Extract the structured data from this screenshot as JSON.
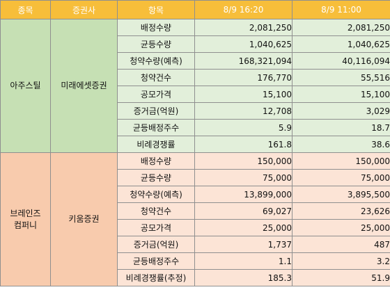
{
  "header": {
    "stock": "종목",
    "broker": "증권사",
    "item": "항목",
    "time1": "8/9 16:20",
    "time2": "8/9 11:00"
  },
  "colors": {
    "header_bg": "#f7be3a",
    "group1_left": "#c6e0b4",
    "group1_right": "#e2efda",
    "group2_left": "#f8cbad",
    "group2_right": "#fce4d6"
  },
  "groups": [
    {
      "stock": "아주스틸",
      "broker": "미래에셋증권",
      "rows": [
        {
          "item": "배정수량",
          "v1": "2,081,250",
          "v2": "2,081,250"
        },
        {
          "item": "균등수량",
          "v1": "1,040,625",
          "v2": "1,040,625"
        },
        {
          "item": "청약수량(예측)",
          "v1": "168,321,094",
          "v2": "40,116,094"
        },
        {
          "item": "청약건수",
          "v1": "176,770",
          "v2": "55,516"
        },
        {
          "item": "공모가격",
          "v1": "15,100",
          "v2": "15,100"
        },
        {
          "item": "증거금(억원)",
          "v1": "12,708",
          "v2": "3,029"
        },
        {
          "item": "균등배정주수",
          "v1": "5.9",
          "v2": "18.7"
        },
        {
          "item": "비례경쟁률",
          "v1": "161.8",
          "v2": "38.6"
        }
      ]
    },
    {
      "stock_line1": "브레인즈",
      "stock_line2": "컴퍼니",
      "broker": "키움증권",
      "rows": [
        {
          "item": "배정수량",
          "v1": "150,000",
          "v2": "150,000"
        },
        {
          "item": "균등수량",
          "v1": "75,000",
          "v2": "75,000"
        },
        {
          "item": "청약수량(예측)",
          "v1": "13,899,000",
          "v2": "3,895,500"
        },
        {
          "item": "청약건수",
          "v1": "69,027",
          "v2": "23,626"
        },
        {
          "item": "공모가격",
          "v1": "25,000",
          "v2": "25,000"
        },
        {
          "item": "증거금(억원)",
          "v1": "1,737",
          "v2": "487"
        },
        {
          "item": "균등배정주수",
          "v1": "1.1",
          "v2": "3.2"
        },
        {
          "item": "비례경쟁률(추정)",
          "v1": "185.3",
          "v2": "51.9"
        }
      ]
    }
  ]
}
